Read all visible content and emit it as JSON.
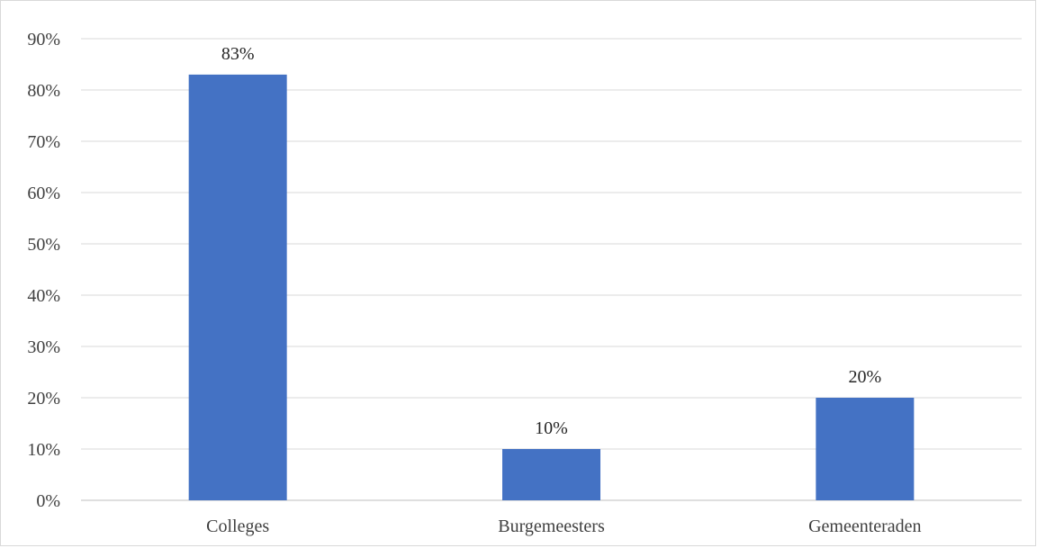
{
  "chart_data": {
    "type": "bar",
    "categories": [
      "Colleges",
      "Burgemeesters",
      "Gemeenteraden"
    ],
    "values": [
      83,
      10,
      20
    ],
    "data_labels": [
      "83%",
      "10%",
      "20%"
    ],
    "value_unit": "%",
    "ylim": [
      0,
      90
    ],
    "yticks": [
      0,
      10,
      20,
      30,
      40,
      50,
      60,
      70,
      80,
      90
    ],
    "ytick_labels": [
      "0%",
      "10%",
      "20%",
      "30%",
      "40%",
      "50%",
      "60%",
      "70%",
      "80%",
      "90%"
    ],
    "title": "",
    "xlabel": "",
    "ylabel": "",
    "grid": true,
    "legend": "none",
    "colors": {
      "bar": "#4472c4",
      "grid": "#d9d9d9",
      "axis": "#bfbfbf",
      "text": "#404040"
    }
  }
}
